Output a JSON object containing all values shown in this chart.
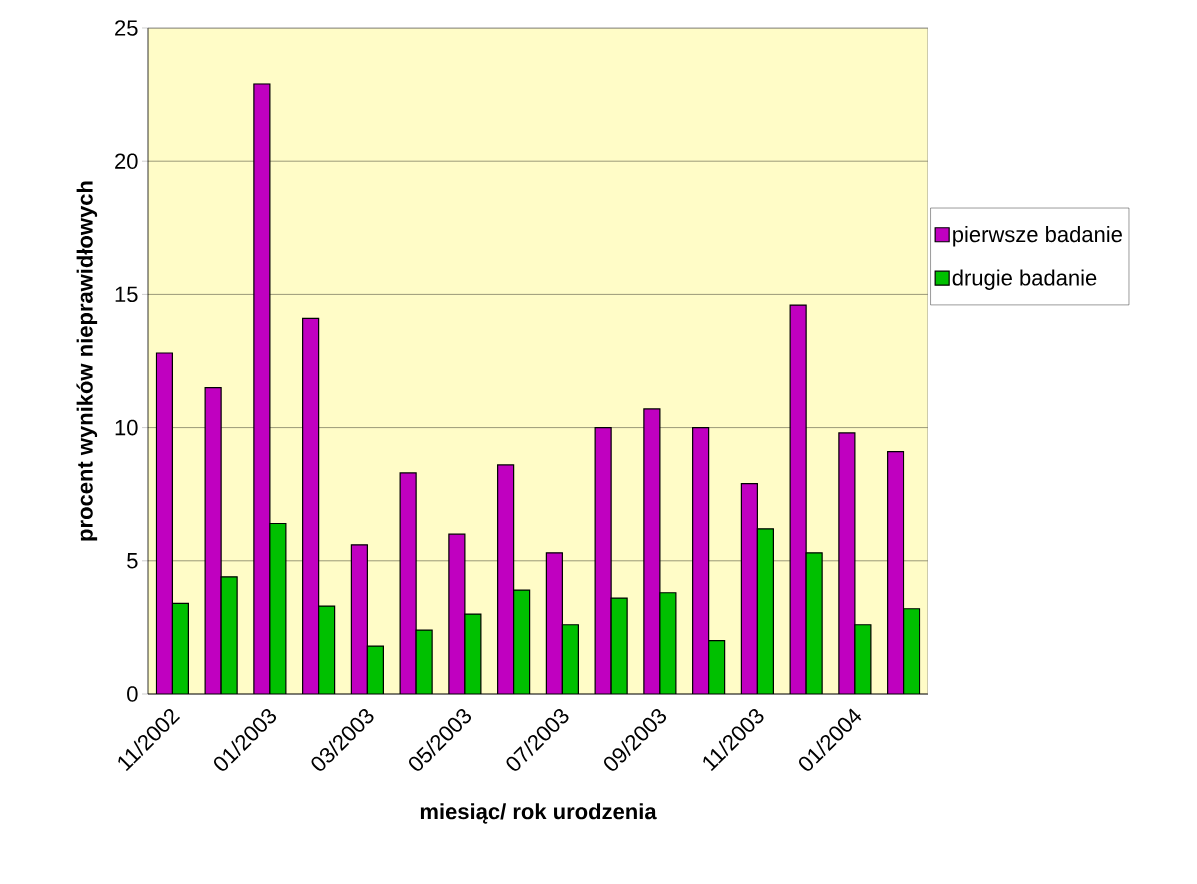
{
  "chart_data": {
    "type": "bar",
    "xlabel": "miesiąc/ rok urodzenia",
    "ylabel": "procent wyników nieprawidłowych",
    "categories": [
      "11/2002",
      null,
      "01/2003",
      null,
      "03/2003",
      null,
      "05/2003",
      null,
      "07/2003",
      null,
      "09/2003",
      null,
      "11/2003",
      null,
      "01/2004",
      null
    ],
    "series": [
      {
        "name": "pierwsze badanie",
        "color": "#c000c0",
        "values": [
          12.8,
          11.5,
          22.9,
          14.1,
          5.6,
          8.3,
          6.0,
          8.6,
          5.3,
          10.0,
          10.7,
          10.0,
          7.9,
          14.6,
          9.8,
          9.1
        ]
      },
      {
        "name": "drugie badanie",
        "color": "#00c000",
        "values": [
          3.4,
          4.4,
          6.4,
          3.3,
          1.8,
          2.4,
          3.0,
          3.9,
          2.6,
          3.6,
          3.8,
          2.0,
          6.2,
          5.3,
          2.6,
          3.2
        ]
      }
    ],
    "ylim": [
      0,
      25
    ],
    "yticks": [
      0,
      5,
      10,
      15,
      20,
      25
    ],
    "grid": "y",
    "legend": "right"
  }
}
